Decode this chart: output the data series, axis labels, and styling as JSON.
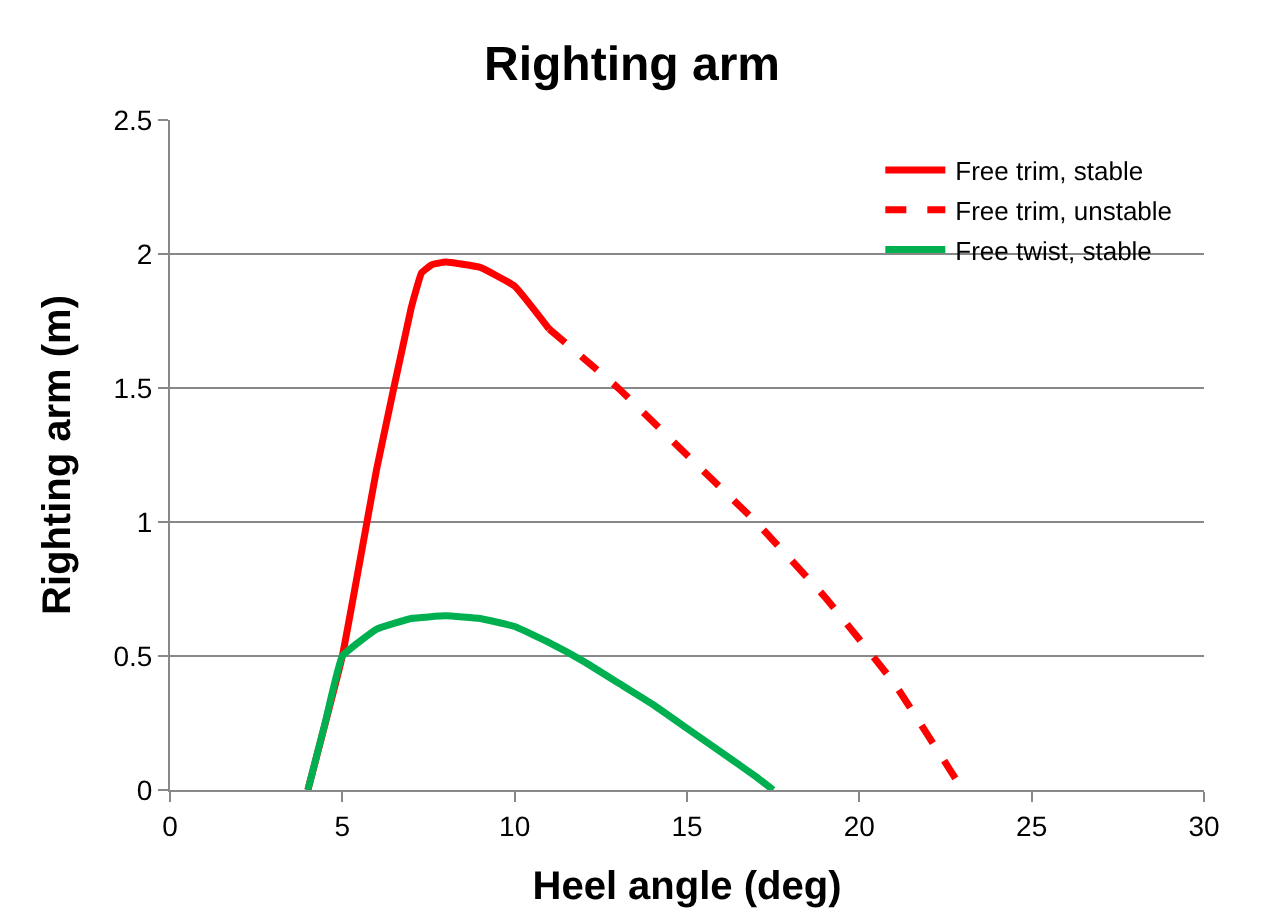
{
  "chart_data": {
    "type": "line",
    "title": "Righting arm",
    "xlabel": "Heel angle (deg)",
    "ylabel": "Righting arm (m)",
    "xlim": [
      0,
      30
    ],
    "xticks": [
      0,
      5,
      10,
      15,
      20,
      25,
      30
    ],
    "ylim": [
      0,
      2.5
    ],
    "yticks": [
      0,
      0.5,
      1,
      1.5,
      2,
      2.5
    ],
    "grid": "y",
    "legend": "top right",
    "marker": "none",
    "series": [
      {
        "name": "Free trim, stable",
        "color": "#ff0000",
        "line_style": "solid",
        "x": [
          4,
          5,
          6,
          7,
          7.3,
          7.6,
          8,
          9,
          10,
          11
        ],
        "values": [
          0,
          0.5,
          1.2,
          1.8,
          1.93,
          1.96,
          1.97,
          1.95,
          1.88,
          1.72
        ]
      },
      {
        "name": "Free trim, unstable",
        "color": "#ff0000",
        "line_style": "dashed",
        "x": [
          11,
          13,
          15,
          17,
          19,
          21,
          23
        ],
        "values": [
          1.72,
          1.5,
          1.25,
          1.0,
          0.72,
          0.4,
          0
        ]
      },
      {
        "name": "Free twist, stable",
        "color": "#00b050",
        "line_style": "solid",
        "x": [
          4,
          4.5,
          5,
          6,
          7,
          8,
          9,
          10,
          11,
          12,
          13,
          14,
          15,
          16,
          17,
          17.5
        ],
        "values": [
          0,
          0.25,
          0.5,
          0.6,
          0.64,
          0.65,
          0.64,
          0.61,
          0.55,
          0.48,
          0.4,
          0.32,
          0.23,
          0.14,
          0.05,
          0
        ]
      }
    ]
  }
}
